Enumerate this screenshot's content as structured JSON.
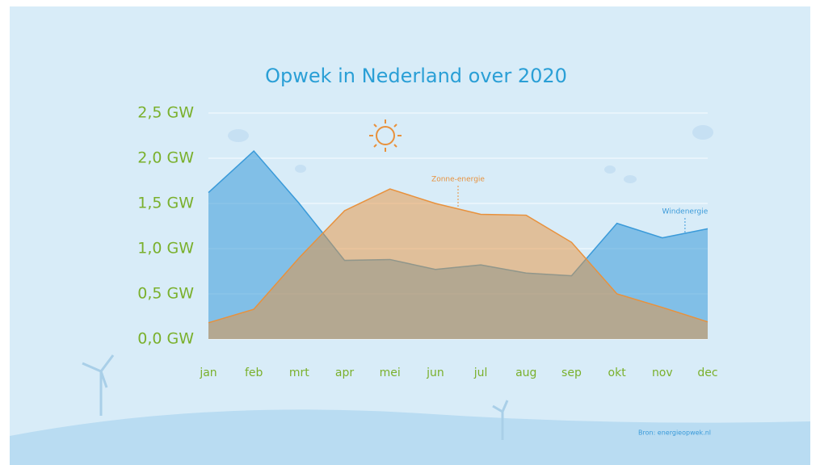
{
  "chart_data": {
    "type": "area",
    "title": "Opwek in Nederland over 2020",
    "categories": [
      "jan",
      "feb",
      "mrt",
      "apr",
      "mei",
      "jun",
      "jul",
      "aug",
      "sep",
      "okt",
      "nov",
      "dec"
    ],
    "series": [
      {
        "name": "Windenergie",
        "color": "#3a9ad9",
        "values": [
          1.62,
          2.08,
          1.5,
          0.87,
          0.88,
          0.77,
          0.82,
          0.73,
          0.7,
          1.28,
          1.12,
          1.22
        ]
      },
      {
        "name": "Zonne-energie",
        "color": "#e8913c",
        "values": [
          0.18,
          0.33,
          0.9,
          1.42,
          1.66,
          1.5,
          1.38,
          1.37,
          1.07,
          0.5,
          0.35,
          0.19
        ]
      }
    ],
    "ylim": [
      0,
      2.5
    ],
    "yticks": [
      {
        "value": 0,
        "label": "0,0 GW"
      },
      {
        "value": 0.5,
        "label": "0,5 GW"
      },
      {
        "value": 1,
        "label": "1,0 GW"
      },
      {
        "value": 1.5,
        "label": "1,5 GW"
      },
      {
        "value": 2,
        "label": "2,0 GW"
      },
      {
        "value": 2.5,
        "label": "2,5 GW"
      }
    ],
    "grid": true,
    "source": "Bron: energieopwek.nl"
  }
}
